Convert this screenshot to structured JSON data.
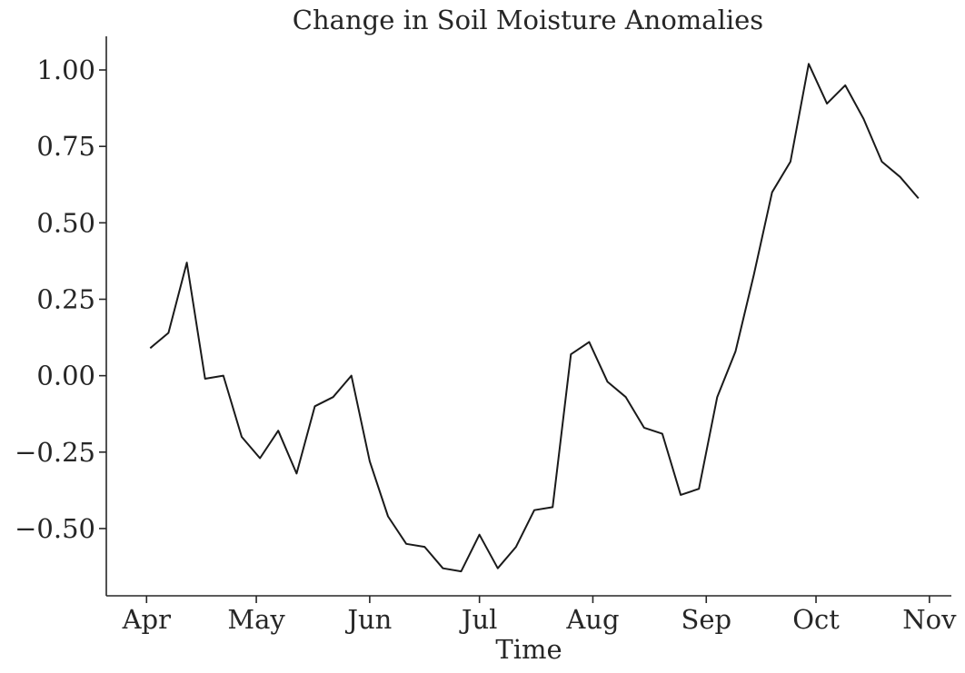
{
  "chart_data": {
    "type": "line",
    "title": "Change in Soil Moisture Anomalies",
    "xlabel": "Time",
    "ylabel": "",
    "x_tick_labels": [
      "Apr",
      "May",
      "Jun",
      "Jul",
      "Aug",
      "Sep",
      "Oct",
      "Nov"
    ],
    "y_ticks": [
      1.0,
      0.75,
      0.5,
      0.25,
      0.0,
      -0.25,
      -0.5
    ],
    "y_tick_labels": [
      "1.00",
      "0.75",
      "0.50",
      "0.25",
      "0.00",
      "−0.25",
      "−0.50"
    ],
    "ylim": [
      -0.72,
      1.11
    ],
    "xlim": [
      "2023-03-21",
      "2023-11-07"
    ],
    "grid": false,
    "series": [
      {
        "color": "#1a1a1a",
        "x": [
          "2023-04-02",
          "2023-04-07",
          "2023-04-12",
          "2023-04-17",
          "2023-04-22",
          "2023-04-27",
          "2023-05-02",
          "2023-05-07",
          "2023-05-12",
          "2023-05-17",
          "2023-05-22",
          "2023-05-27",
          "2023-06-01",
          "2023-06-06",
          "2023-06-11",
          "2023-06-16",
          "2023-06-21",
          "2023-06-26",
          "2023-07-01",
          "2023-07-06",
          "2023-07-11",
          "2023-07-16",
          "2023-07-21",
          "2023-07-26",
          "2023-07-31",
          "2023-08-05",
          "2023-08-10",
          "2023-08-15",
          "2023-08-20",
          "2023-08-25",
          "2023-08-30",
          "2023-09-04",
          "2023-09-09",
          "2023-09-14",
          "2023-09-19",
          "2023-09-24",
          "2023-09-29",
          "2023-10-04",
          "2023-10-09",
          "2023-10-14",
          "2023-10-19",
          "2023-10-24",
          "2023-10-29"
        ],
        "y": [
          0.09,
          0.14,
          0.37,
          -0.01,
          0.0,
          -0.2,
          -0.27,
          -0.18,
          -0.32,
          -0.1,
          -0.07,
          0.0,
          -0.28,
          -0.46,
          -0.55,
          -0.56,
          -0.63,
          -0.64,
          -0.52,
          -0.63,
          -0.56,
          -0.44,
          -0.43,
          0.07,
          0.11,
          -0.02,
          -0.07,
          -0.17,
          -0.19,
          -0.39,
          -0.37,
          -0.07,
          0.08,
          0.33,
          0.6,
          0.7,
          1.02,
          0.89,
          0.95,
          0.84,
          0.7,
          0.65,
          0.58
        ]
      }
    ]
  }
}
